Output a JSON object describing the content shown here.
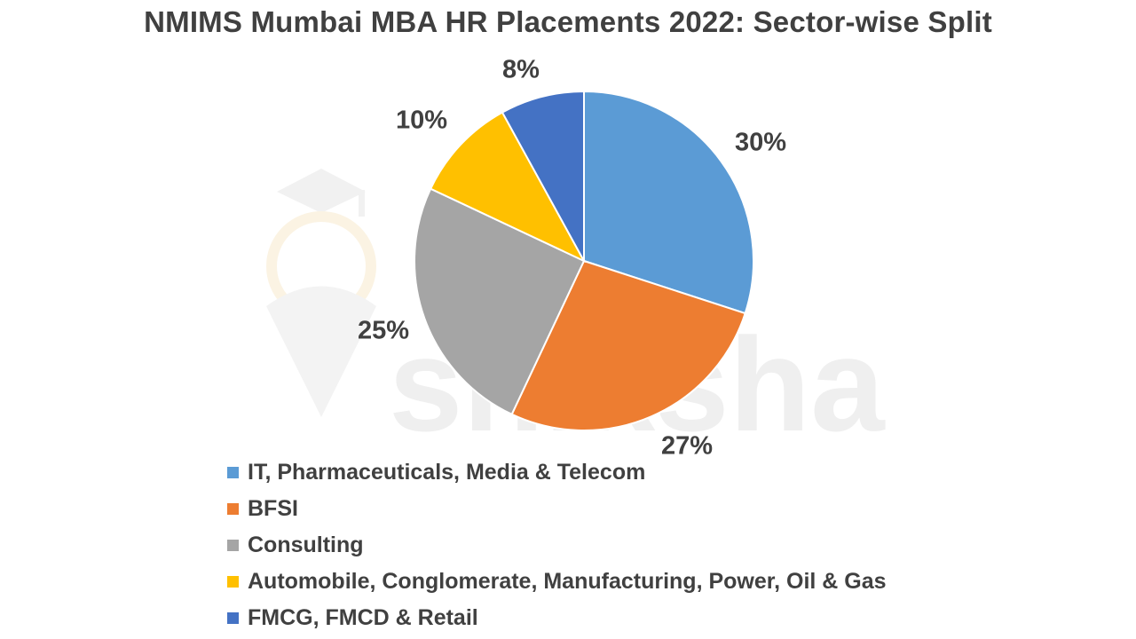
{
  "chart_data": {
    "type": "pie",
    "title": "NMIMS Mumbai MBA HR Placements 2022: Sector-wise Split",
    "categories": [
      "IT, Pharmaceuticals, Media & Telecom",
      "BFSI",
      "Consulting",
      "Automobile, Conglomerate, Manufacturing, Power, Oil & Gas",
      "FMCG, FMCD & Retail"
    ],
    "values": [
      30,
      27,
      25,
      10,
      8
    ],
    "data_labels": [
      "30%",
      "27%",
      "25%",
      "10%",
      "8%"
    ],
    "colors": [
      "#5b9bd5",
      "#ed7d31",
      "#a5a5a5",
      "#ffc000",
      "#4472c4"
    ],
    "legend_position": "bottom",
    "watermark": "shiksha"
  }
}
